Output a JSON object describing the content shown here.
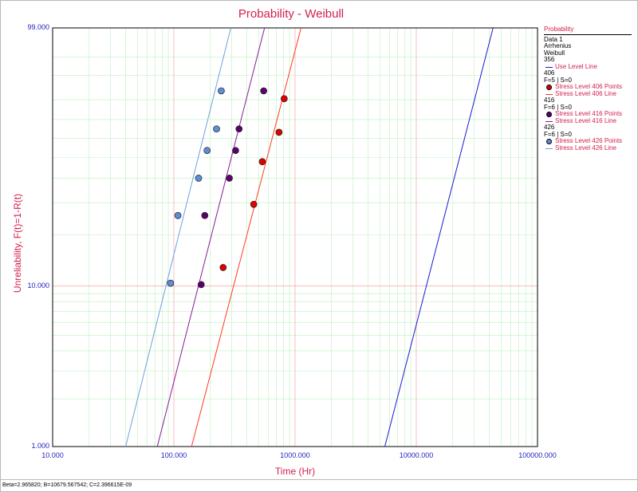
{
  "chart_data": {
    "type": "scatter",
    "title": "Probability - Weibull",
    "xlabel": "Time (Hr)",
    "ylabel": "Unreliability, F(t)=1-R(t)",
    "x_scale": "log",
    "y_scale": "weibull",
    "xlim": [
      10,
      100000
    ],
    "ylim": [
      1,
      99
    ],
    "x_tick_labels": [
      "10.000",
      "100.000",
      "1000.000",
      "10000.000",
      "100000.000"
    ],
    "y_tick_labels": [
      "1.000",
      "10.000",
      "99.000"
    ],
    "grid": true,
    "legend_position": "right",
    "series": [
      {
        "name": "Stress Level 406 Points",
        "kind": "points",
        "color": "#e00000",
        "x": [
          255,
          456,
          537,
          737,
          813
        ],
        "y": [
          12.9,
          29.4,
          47.8,
          63.2,
          80.5
        ]
      },
      {
        "name": "Stress Level 406 Line",
        "kind": "line",
        "color": "#ff3b1f",
        "x": [
          140,
          1120
        ],
        "y": [
          1,
          99
        ]
      },
      {
        "name": "Stress Level 416 Points",
        "kind": "points",
        "color": "#5c0070",
        "x": [
          168,
          180,
          287,
          323,
          345,
          551
        ],
        "y": [
          10.2,
          25.6,
          40.0,
          53.5,
          65.0,
          84.0
        ]
      },
      {
        "name": "Stress Level 416 Line",
        "kind": "line",
        "color": "#8a1a9a",
        "x": [
          73,
          560
        ],
        "y": [
          1,
          99
        ]
      },
      {
        "name": "Stress Level 426 Points",
        "kind": "points",
        "color": "#5b8fd6",
        "x": [
          94,
          108,
          160,
          188,
          225,
          246
        ],
        "y": [
          10.4,
          25.6,
          40.0,
          53.5,
          65.0,
          84.0
        ]
      },
      {
        "name": "Stress Level 426 Line",
        "kind": "line",
        "color": "#6fa0dc",
        "x": [
          40,
          295
        ],
        "y": [
          1,
          99
        ]
      },
      {
        "name": "Use Level Line",
        "kind": "line",
        "color": "#1a1ad0",
        "x": [
          5500,
          43000
        ],
        "y": [
          1,
          99
        ]
      }
    ]
  },
  "legend": {
    "title": "Probability",
    "header": [
      "Data 1",
      "Arrhenius",
      "Weibull",
      "356"
    ],
    "use_level": "Use Level Line",
    "groups": [
      {
        "stress": "406",
        "counts": "F=5 | S=0",
        "points_label": "Stress Level 406 Points",
        "line_label": "Stress Level 406 Line",
        "point_color": "#e00000",
        "line_color": "#ff3b1f"
      },
      {
        "stress": "416",
        "counts": "F=6 | S=0",
        "points_label": "Stress Level 416 Points",
        "line_label": "Stress Level 416 Line",
        "point_color": "#5c0070",
        "line_color": "#8a1a9a"
      },
      {
        "stress": "426",
        "counts": "F=6 | S=0",
        "points_label": "Stress Level 426 Points",
        "line_label": "Stress Level 426 Line",
        "point_color": "#5b8fd6",
        "line_color": "#6fa0dc"
      }
    ],
    "use_level_color": "#1a1ad0"
  },
  "footer": "Beta=2.965820; B=10679.567542; C=2.396615E-09"
}
